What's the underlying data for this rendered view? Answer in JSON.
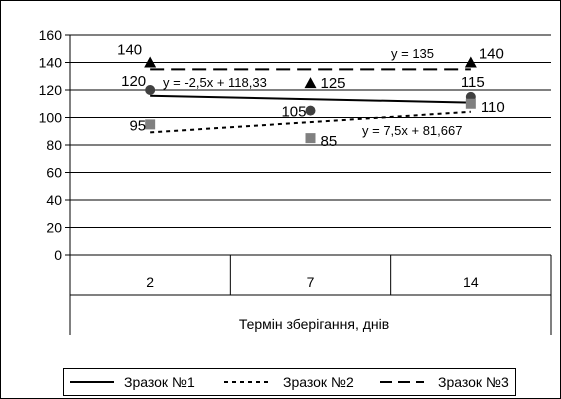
{
  "chart_data": {
    "type": "scatter",
    "title": "",
    "xlabel": "Термін зберігання, днів",
    "ylabel": "",
    "categories": [
      "2",
      "7",
      "14"
    ],
    "ylim": [
      0,
      160
    ],
    "yticks": [
      0,
      20,
      40,
      60,
      80,
      100,
      120,
      140,
      160
    ],
    "grid": true,
    "legend_position": "bottom",
    "series": [
      {
        "name": "Зразок №1",
        "marker": "circle",
        "color": "#404040",
        "line_style": "solid",
        "values": [
          120,
          105,
          115
        ],
        "point_labels": [
          "120",
          "105",
          "115"
        ],
        "trendline": {
          "label": "y = -2,5x + 118,33",
          "slope": -2.5,
          "intercept": 118.33
        }
      },
      {
        "name": "Зразок №2",
        "marker": "square",
        "color": "#808080",
        "line_style": "dotted",
        "values": [
          95,
          85,
          110
        ],
        "point_labels": [
          "95",
          "85",
          "110"
        ],
        "trendline": {
          "label": "y = 7,5x + 81,667",
          "slope": 7.5,
          "intercept": 81.667
        }
      },
      {
        "name": "Зразок №3",
        "marker": "triangle",
        "color": "#000000",
        "line_style": "dashed",
        "values": [
          140,
          125,
          140
        ],
        "point_labels": [
          "140",
          "125",
          "140"
        ],
        "trendline": {
          "label": "y = 135",
          "slope": 0,
          "intercept": 135
        }
      }
    ]
  }
}
